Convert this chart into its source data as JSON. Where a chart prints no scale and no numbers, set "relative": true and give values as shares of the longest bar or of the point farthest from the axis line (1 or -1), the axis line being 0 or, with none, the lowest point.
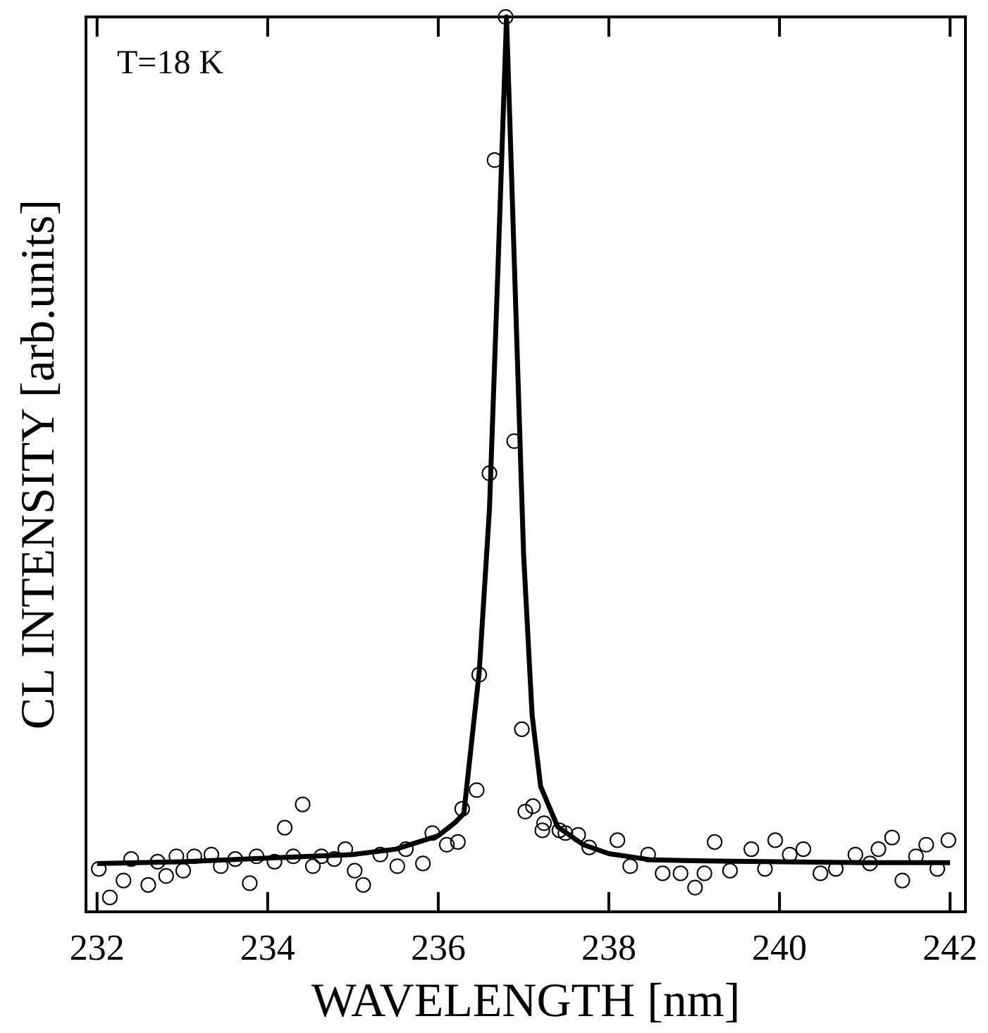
{
  "chart_data": {
    "type": "scatter",
    "xlabel": "WAVELENGTH [nm]",
    "ylabel": "CL INTENSITY [arb.units]",
    "annotations": [
      "T=18 K"
    ],
    "relative": true,
    "xlim": [
      231.87,
      242.18
    ],
    "xticks": [
      232,
      234,
      236,
      238,
      240,
      242
    ],
    "grid": false,
    "series": [
      {
        "marker": "circle",
        "color": "#000000",
        "x": [
          232.02,
          232.15,
          232.31,
          232.4,
          232.6,
          232.71,
          232.81,
          232.93,
          233.01,
          233.14,
          233.34,
          233.45,
          233.62,
          233.79,
          233.87,
          234.08,
          234.2,
          234.3,
          234.41,
          234.53,
          234.63,
          234.78,
          234.91,
          235.02,
          235.12,
          235.32,
          235.52,
          235.62,
          235.82,
          235.93,
          236.1,
          236.23,
          236.28,
          236.45,
          236.48,
          236.6,
          236.66,
          236.79,
          236.89,
          236.98,
          237.02,
          237.11,
          237.22,
          237.24,
          237.42,
          237.49,
          237.64,
          237.77,
          238.1,
          238.25,
          238.46,
          238.63,
          238.84,
          239.01,
          239.12,
          239.24,
          239.42,
          239.67,
          239.83,
          239.95,
          240.12,
          240.28,
          240.48,
          240.66,
          240.89,
          241.06,
          241.16,
          241.32,
          241.44,
          241.6,
          241.72,
          241.85,
          241.98
        ],
        "values": [
          0.048,
          0.016,
          0.035,
          0.059,
          0.03,
          0.056,
          0.04,
          0.062,
          0.046,
          0.062,
          0.064,
          0.051,
          0.059,
          0.032,
          0.062,
          0.056,
          0.094,
          0.062,
          0.12,
          0.051,
          0.062,
          0.059,
          0.07,
          0.046,
          0.03,
          0.064,
          0.051,
          0.07,
          0.054,
          0.088,
          0.075,
          0.078,
          0.115,
          0.136,
          0.265,
          0.49,
          0.84,
          1,
          0.526,
          0.204,
          0.112,
          0.118,
          0.091,
          0.099,
          0.091,
          0.088,
          0.086,
          0.072,
          0.08,
          0.051,
          0.064,
          0.043,
          0.043,
          0.027,
          0.043,
          0.078,
          0.046,
          0.07,
          0.048,
          0.08,
          0.064,
          0.07,
          0.043,
          0.048,
          0.064,
          0.054,
          0.07,
          0.083,
          0.035,
          0.062,
          0.075,
          0.048,
          0.08
        ]
      },
      {
        "type": "line",
        "color": "#000000",
        "x": [
          232.0,
          233.0,
          234.0,
          235.0,
          235.5,
          236.0,
          236.2,
          236.3,
          236.48,
          236.6,
          236.7,
          236.8,
          236.9,
          237.0,
          237.1,
          237.2,
          237.4,
          237.7,
          238.0,
          238.5,
          239.0,
          240.0,
          241.0,
          242.0
        ],
        "values": [
          0.054,
          0.056,
          0.06,
          0.064,
          0.07,
          0.085,
          0.1,
          0.11,
          0.268,
          0.45,
          0.72,
          1,
          0.7,
          0.4,
          0.22,
          0.14,
          0.095,
          0.075,
          0.065,
          0.058,
          0.057,
          0.056,
          0.055,
          0.055
        ]
      }
    ]
  }
}
